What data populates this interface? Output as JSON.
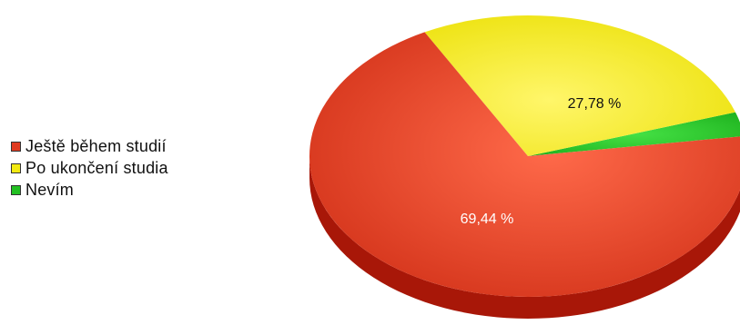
{
  "chart_data": {
    "type": "pie",
    "style": "3d",
    "legend_position": "left",
    "slices": [
      {
        "label": "Ještě během studií",
        "value": 69.44,
        "display": "69,44 %",
        "color": "#e03a20",
        "label_color": "#ffffff"
      },
      {
        "label": "Po ukončení studia",
        "value": 27.78,
        "display": "27,78 %",
        "color": "#f2ea12",
        "label_color": "#111111"
      },
      {
        "label": "Nevím",
        "value": 2.78,
        "display": "",
        "color": "#22c022",
        "label_color": "#111111"
      }
    ]
  }
}
